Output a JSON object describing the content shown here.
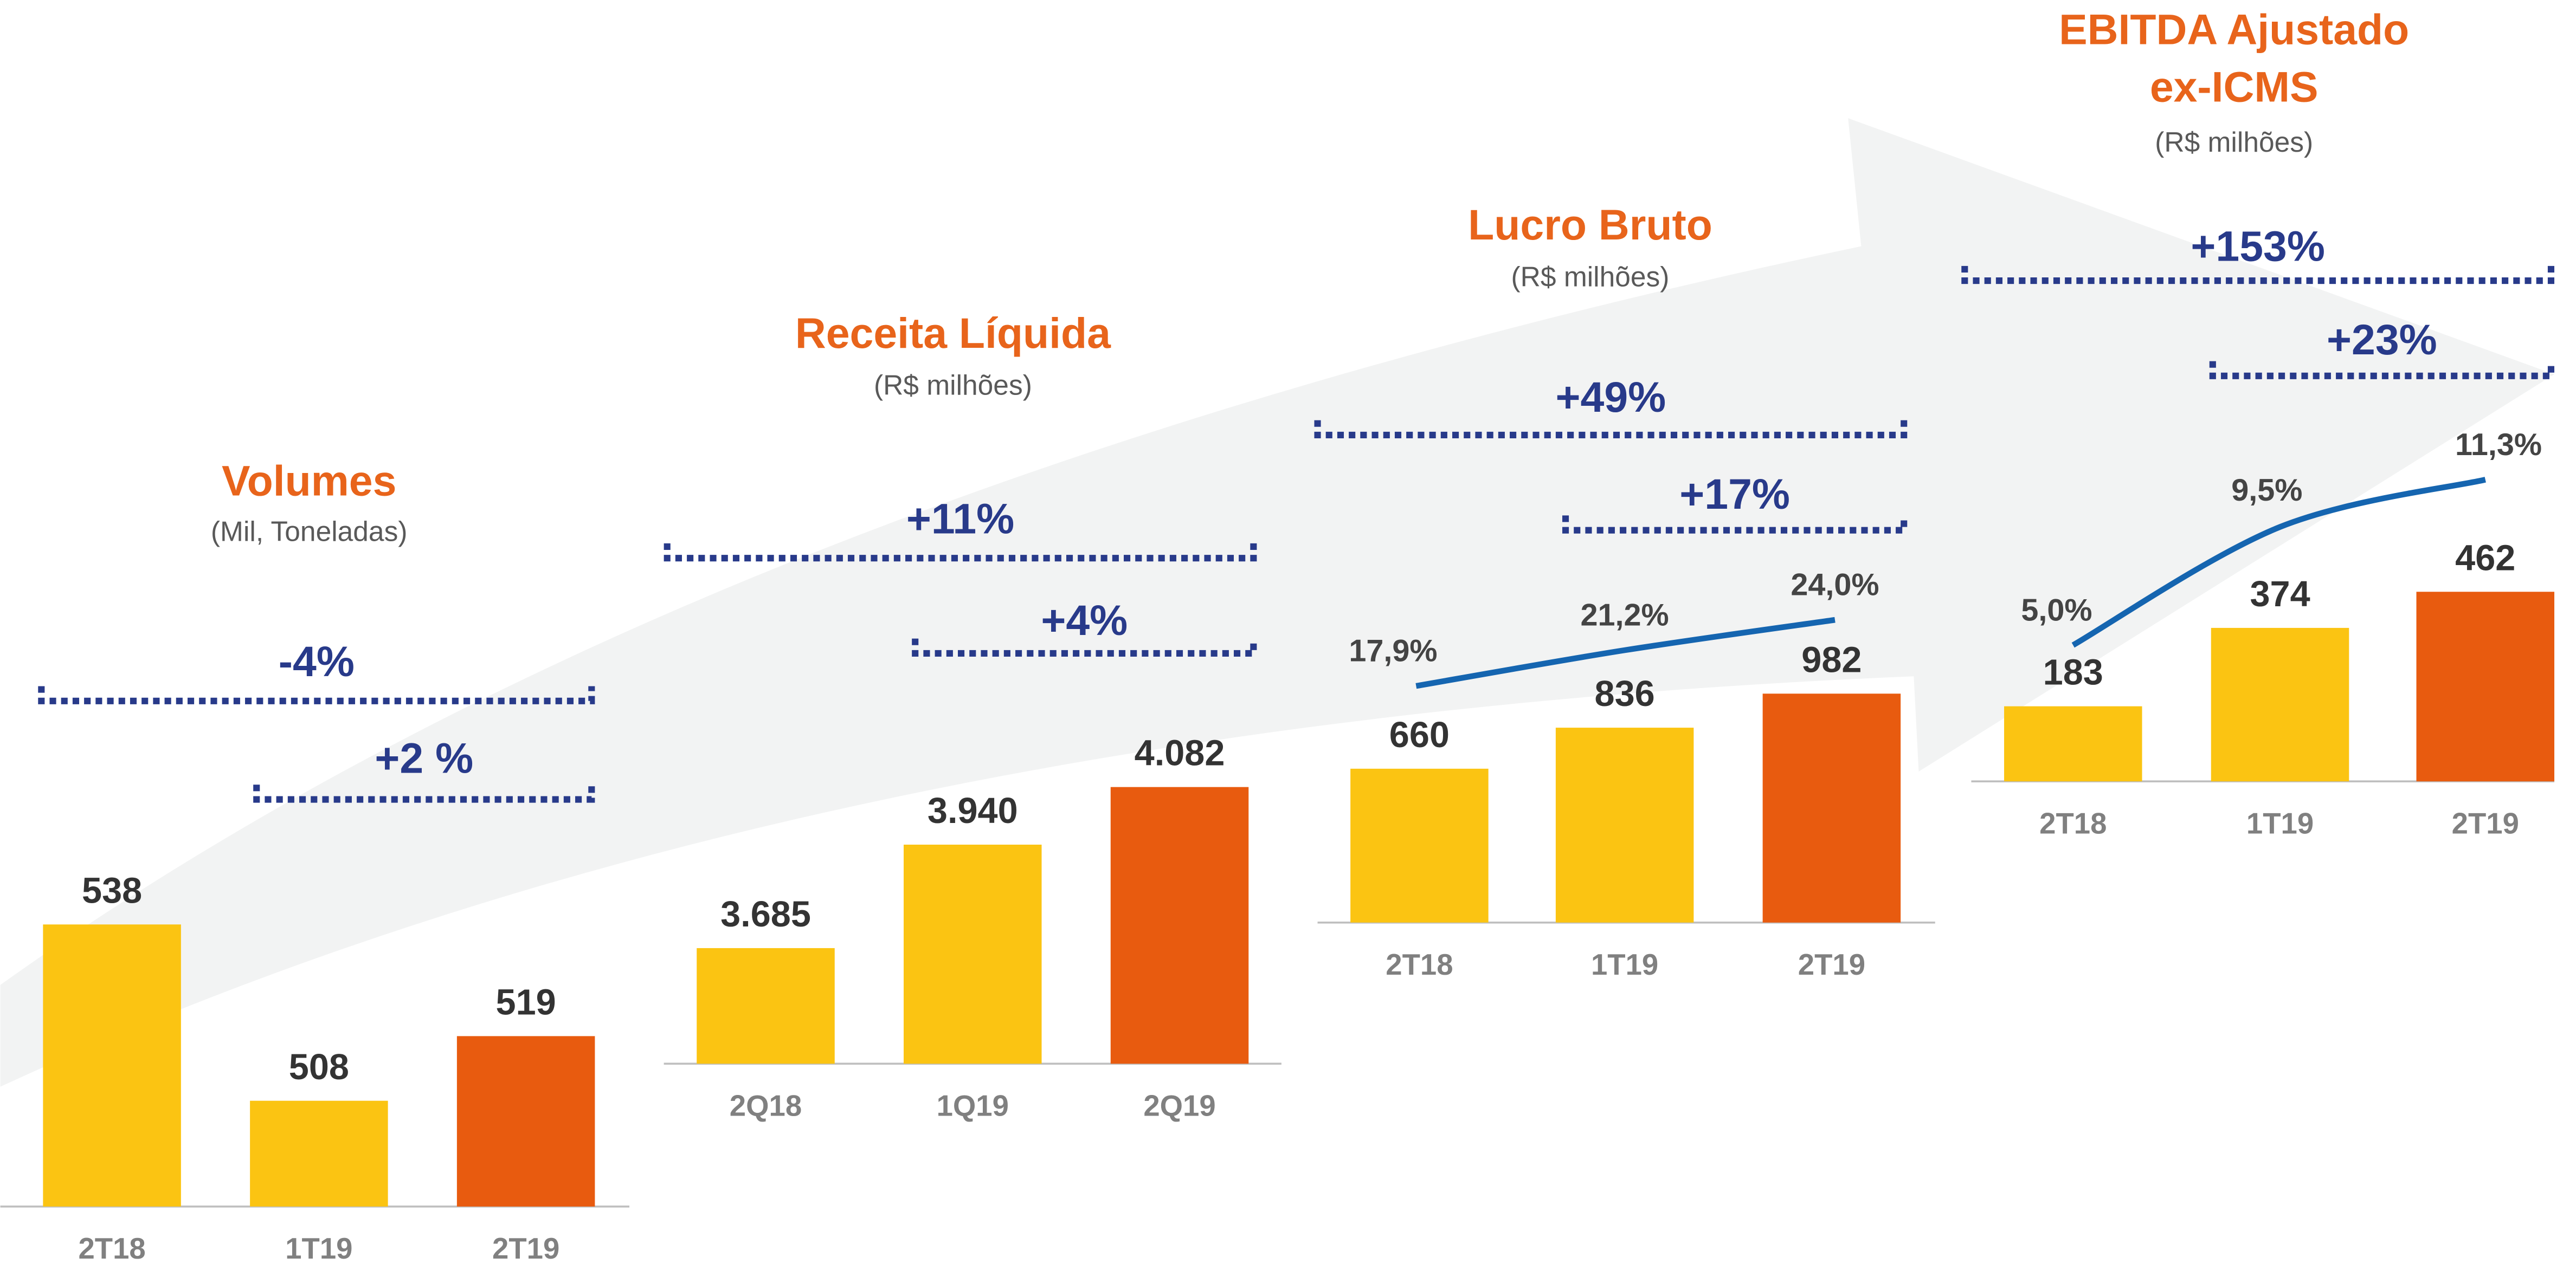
{
  "chart_data": [
    {
      "type": "bar",
      "title": "Volumes",
      "subtitle": "(Mil, Toneladas)",
      "categories": [
        "2T18",
        "1T19",
        "2T19"
      ],
      "values": [
        538,
        508,
        519
      ],
      "colors": [
        "#fbc412",
        "#fbc412",
        "#e85b0f"
      ],
      "ylim": [
        490,
        540
      ],
      "annotations": [
        "-4%",
        "+2 %"
      ]
    },
    {
      "type": "bar",
      "title": "Receita Líquida",
      "subtitle": "(R$ milhões)",
      "categories": [
        "2Q18",
        "1Q19",
        "2Q19"
      ],
      "values": [
        3685,
        3940,
        4082
      ],
      "value_labels": [
        "3.685",
        "3.940",
        "4.082"
      ],
      "colors": [
        "#fbc412",
        "#fbc412",
        "#e85b0f"
      ],
      "ylim": [
        3400,
        4100
      ],
      "annotations": [
        "+11%",
        "+4%"
      ]
    },
    {
      "type": "bar",
      "title": "Lucro Bruto",
      "subtitle": "(R$ milhões)",
      "categories": [
        "2T18",
        "1T19",
        "2T19"
      ],
      "values": [
        660,
        836,
        982
      ],
      "colors": [
        "#fbc412",
        "#fbc412",
        "#e85b0f"
      ],
      "ylim": [
        0,
        1000
      ],
      "line": {
        "values": [
          17.9,
          21.2,
          24.0
        ],
        "value_labels": [
          "17,9%",
          "21,2%",
          "24,0%"
        ],
        "color": "#1565b0"
      },
      "y2lim": [
        15,
        25
      ],
      "annotations": [
        "+49%",
        "+17%"
      ]
    },
    {
      "type": "bar",
      "title": [
        "EBITDA Ajustado",
        "ex-ICMS"
      ],
      "subtitle": "(R$ milhões)",
      "categories": [
        "2T18",
        "1T19",
        "2T19"
      ],
      "values": [
        183,
        374,
        462
      ],
      "colors": [
        "#fbc412",
        "#fbc412",
        "#e85b0f"
      ],
      "ylim": [
        0,
        500
      ],
      "line": {
        "values": [
          5.0,
          9.5,
          11.3
        ],
        "value_labels": [
          "5,0%",
          "9,5%",
          "11,3%"
        ],
        "color": "#1565b0"
      },
      "y2lim": [
        0,
        12
      ],
      "annotations": [
        "+153%",
        "+23%"
      ]
    }
  ]
}
